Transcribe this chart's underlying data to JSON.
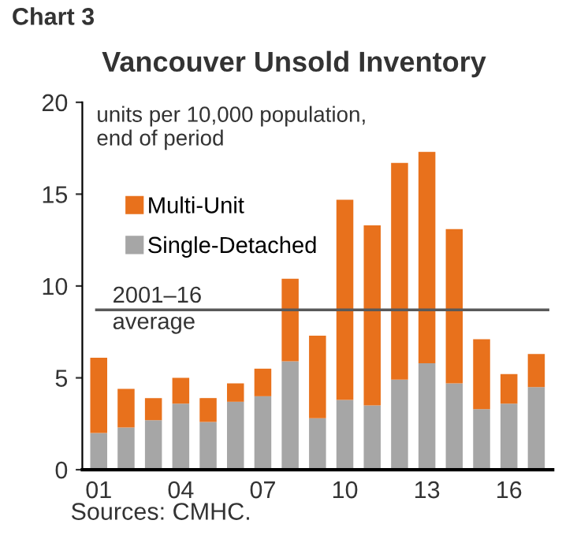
{
  "chart_data": {
    "type": "bar",
    "stacked": true,
    "title": "Vancouver Unsold Inventory",
    "ylabel": "units per 10,000 population,\nend of period",
    "categories": [
      "01",
      null,
      null,
      "04",
      null,
      null,
      "07",
      null,
      null,
      "10",
      null,
      null,
      "13",
      null,
      null,
      "16",
      null
    ],
    "series": [
      {
        "name": "Single-Detached",
        "color": "#a6a6a6",
        "values": [
          2.0,
          2.3,
          2.7,
          3.6,
          2.6,
          3.7,
          4.0,
          5.9,
          2.8,
          3.8,
          3.5,
          4.9,
          5.8,
          4.7,
          3.3,
          3.6,
          4.5
        ]
      },
      {
        "name": "Multi-Unit",
        "color": "#e8711c",
        "values": [
          4.1,
          2.1,
          1.2,
          1.4,
          1.3,
          1.0,
          1.5,
          4.5,
          4.5,
          10.9,
          9.8,
          11.8,
          11.5,
          8.4,
          3.8,
          1.6,
          1.8
        ]
      }
    ],
    "ylim": [
      0,
      20
    ],
    "yticks": [
      0,
      5,
      10,
      15,
      20
    ],
    "grid": false,
    "legend": "top left",
    "ref_lines": [
      {
        "axis": "y",
        "value": 8.7,
        "label": "2001–16\naverage",
        "color": "#595959"
      }
    ],
    "annotations": [
      "Chart 3",
      "Sources: CMHC."
    ]
  }
}
